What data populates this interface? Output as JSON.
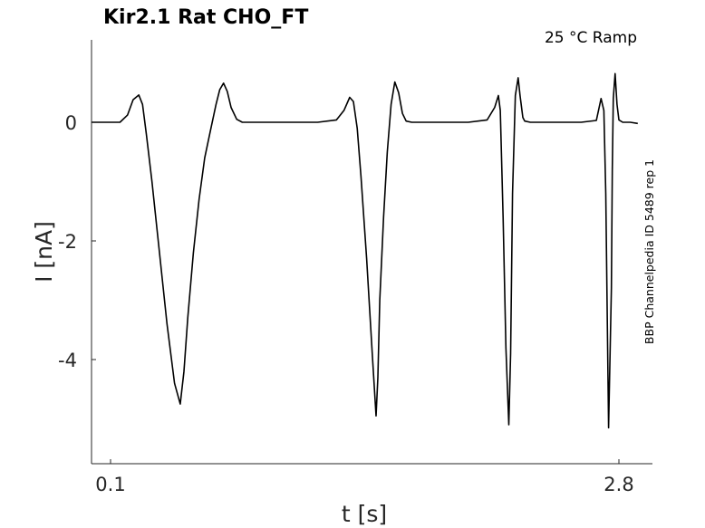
{
  "chart_data": {
    "type": "line",
    "title": "Kir2.1  Rat  CHO_FT",
    "subtitle": "25 °C  Ramp",
    "xlabel": "t [s]",
    "ylabel": "I [nA]",
    "side_note": "BBP Channelpedia ID 5489 rep 1",
    "xlim": [
      0.0,
      2.92
    ],
    "ylim": [
      -5.7,
      1.4
    ],
    "x_ticks": [
      {
        "value": 0.1,
        "label": "0.1"
      },
      {
        "value": 2.8,
        "label": "2.8"
      }
    ],
    "y_ticks": [
      {
        "value": 0,
        "label": "0"
      },
      {
        "value": -2,
        "label": "-2"
      },
      {
        "value": -4,
        "label": "-4"
      }
    ],
    "grid": false,
    "series": [
      {
        "color": "#000000",
        "x": [
          0.0,
          0.15,
          0.19,
          0.22,
          0.25,
          0.27,
          0.29,
          0.32,
          0.36,
          0.4,
          0.44,
          0.47,
          0.49,
          0.51,
          0.54,
          0.57,
          0.6,
          0.63,
          0.66,
          0.68,
          0.7,
          0.72,
          0.74,
          0.77,
          0.8,
          0.85,
          0.9,
          1.0,
          1.2,
          1.3,
          1.34,
          1.37,
          1.39,
          1.41,
          1.43,
          1.46,
          1.49,
          1.51,
          1.52,
          1.53,
          1.55,
          1.57,
          1.59,
          1.61,
          1.63,
          1.65,
          1.67,
          1.7,
          1.75,
          1.85,
          2.0,
          2.1,
          2.14,
          2.16,
          2.17,
          2.185,
          2.2,
          2.215,
          2.225,
          2.235,
          2.25,
          2.265,
          2.275,
          2.29,
          2.3,
          2.33,
          2.4,
          2.6,
          2.68,
          2.705,
          2.72,
          2.73,
          2.745,
          2.76,
          2.765,
          2.77,
          2.78,
          2.79,
          2.8,
          2.82,
          2.86,
          2.9
        ],
        "y": [
          0.0,
          0.0,
          0.12,
          0.38,
          0.46,
          0.3,
          -0.2,
          -1.0,
          -2.2,
          -3.4,
          -4.4,
          -4.75,
          -4.2,
          -3.3,
          -2.2,
          -1.3,
          -0.6,
          -0.15,
          0.3,
          0.55,
          0.66,
          0.52,
          0.25,
          0.05,
          0.0,
          0.0,
          0.0,
          0.0,
          0.0,
          0.04,
          0.2,
          0.42,
          0.35,
          -0.1,
          -0.9,
          -2.3,
          -3.9,
          -4.95,
          -4.3,
          -3.0,
          -1.6,
          -0.5,
          0.3,
          0.68,
          0.5,
          0.15,
          0.02,
          0.0,
          0.0,
          0.0,
          0.0,
          0.04,
          0.25,
          0.45,
          0.2,
          -1.6,
          -3.8,
          -5.1,
          -3.9,
          -1.2,
          0.45,
          0.75,
          0.45,
          0.08,
          0.02,
          0.0,
          0.0,
          0.0,
          0.03,
          0.4,
          0.2,
          -1.2,
          -5.15,
          -2.8,
          -0.8,
          0.4,
          0.82,
          0.3,
          0.04,
          0.0,
          0.0,
          -0.02
        ]
      }
    ]
  }
}
